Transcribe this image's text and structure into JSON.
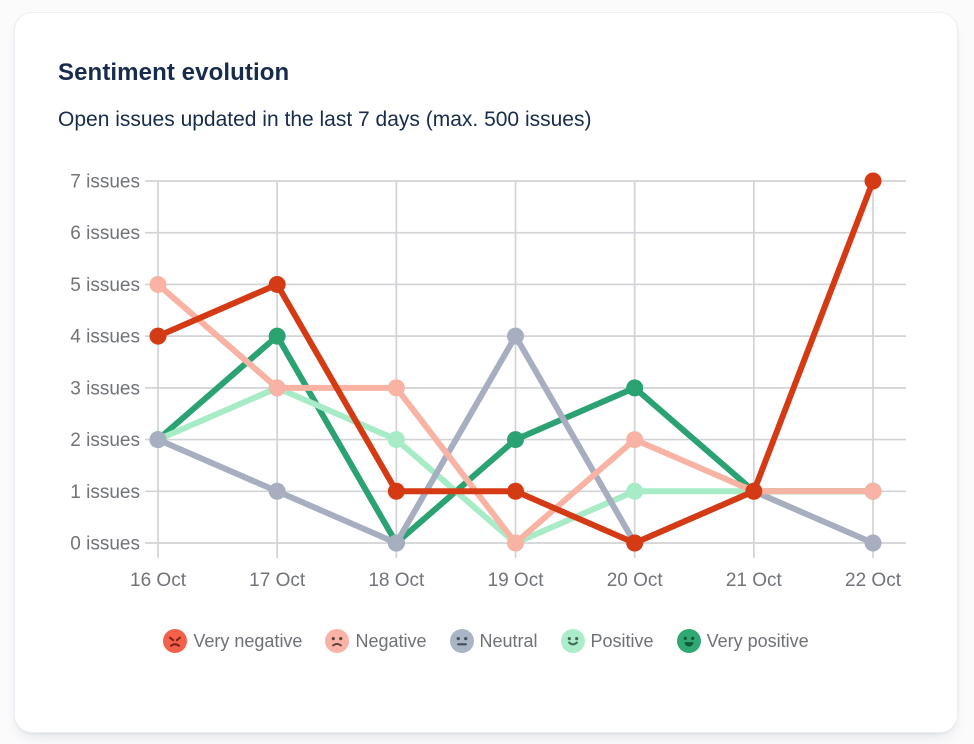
{
  "chart_data": {
    "type": "line",
    "title": "Sentiment evolution",
    "subtitle": "Open issues updated in the last 7 days (max. 500 issues)",
    "categories": [
      "16 Oct",
      "17 Oct",
      "18 Oct",
      "19 Oct",
      "20 Oct",
      "21 Oct",
      "22 Oct"
    ],
    "yticks": [
      "0 issues",
      "1 issues",
      "2 issues",
      "3 issues",
      "4 issues",
      "5 issues",
      "6 issues",
      "7 issues"
    ],
    "ylim": [
      0,
      7
    ],
    "grid": true,
    "legend_position": "bottom",
    "series": [
      {
        "name": "Very negative",
        "color": "#d43a13",
        "legend_color": "#f3614d",
        "face_color": "#7e2012",
        "emoji": "angry-face",
        "values": [
          4,
          5,
          1,
          1,
          0,
          1,
          7
        ]
      },
      {
        "name": "Negative",
        "color": "#f9b3a4",
        "legend_color": "#f9b2a6",
        "face_color": "#5d443a",
        "emoji": "sad-face",
        "values": [
          5,
          3,
          3,
          0,
          2,
          1,
          1
        ]
      },
      {
        "name": "Neutral",
        "color": "#a6aec0",
        "legend_color": "#a9b4c4",
        "face_color": "#454e5b",
        "emoji": "neutral-face",
        "values": [
          2,
          1,
          0,
          4,
          0,
          1,
          0
        ]
      },
      {
        "name": "Positive",
        "color": "#a7ecc6",
        "legend_color": "#abeccb",
        "face_color": "#3f6b57",
        "emoji": "smile-face",
        "values": [
          2,
          3,
          2,
          0,
          1,
          1,
          1
        ]
      },
      {
        "name": "Very positive",
        "color": "#2aa271",
        "legend_color": "#2fa873",
        "face_color": "#14583b",
        "emoji": "big-smile-face",
        "values": [
          2,
          4,
          0,
          2,
          3,
          1,
          1
        ]
      }
    ],
    "draw_order": [
      "Very positive",
      "Positive",
      "Neutral",
      "Negative",
      "Very negative"
    ],
    "colors": {
      "grid": "#d2d3d6",
      "axis_text": "#70737a",
      "title_text": "#172b4d",
      "card_background": "#ffffff",
      "page_background": "#fbfbfc"
    }
  }
}
